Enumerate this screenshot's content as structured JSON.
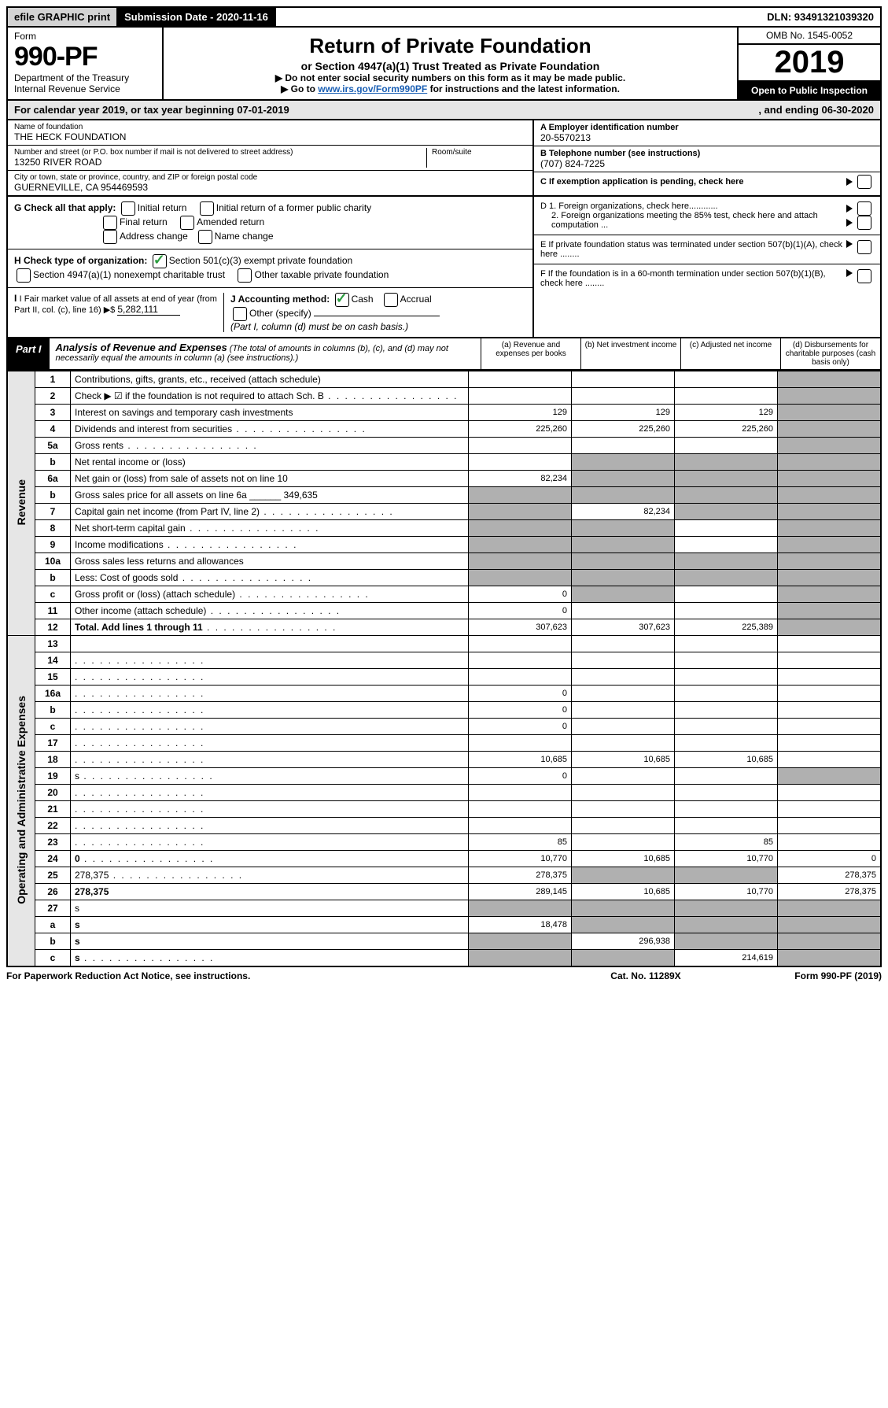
{
  "topbar": {
    "efile": "efile GRAPHIC print",
    "submission_label": "Submission Date - 2020-11-16",
    "dln": "DLN: 93491321039320"
  },
  "header": {
    "form_word": "Form",
    "form_no": "990-PF",
    "dept1": "Department of the Treasury",
    "dept2": "Internal Revenue Service",
    "title": "Return of Private Foundation",
    "subtitle": "or Section 4947(a)(1) Trust Treated as Private Foundation",
    "note1": "▶ Do not enter social security numbers on this form as it may be made public.",
    "note2_pre": "▶ Go to ",
    "note2_link": "www.irs.gov/Form990PF",
    "note2_post": " for instructions and the latest information.",
    "omb": "OMB No. 1545-0052",
    "year": "2019",
    "open": "Open to Public Inspection"
  },
  "calendar": {
    "text": "For calendar year 2019, or tax year beginning 07-01-2019",
    "ending": ", and ending 06-30-2020"
  },
  "id": {
    "name_lbl": "Name of foundation",
    "name": "THE HECK FOUNDATION",
    "addr_lbl": "Number and street (or P.O. box number if mail is not delivered to street address)",
    "room_lbl": "Room/suite",
    "addr": "13250 RIVER ROAD",
    "city_lbl": "City or town, state or province, country, and ZIP or foreign postal code",
    "city": "GUERNEVILLE, CA  954469593",
    "a_lbl": "A Employer identification number",
    "a_val": "20-5570213",
    "b_lbl": "B Telephone number (see instructions)",
    "b_val": "(707) 824-7225",
    "c_lbl": "C If exemption application is pending, check here"
  },
  "checks": {
    "g_lbl": "G Check all that apply:",
    "g1": "Initial return",
    "g2": "Initial return of a former public charity",
    "g3": "Final return",
    "g4": "Amended return",
    "g5": "Address change",
    "g6": "Name change",
    "h_lbl": "H Check type of organization:",
    "h1": "Section 501(c)(3) exempt private foundation",
    "h2": "Section 4947(a)(1) nonexempt charitable trust",
    "h3": "Other taxable private foundation",
    "i_lbl": "I Fair market value of all assets at end of year (from Part II, col. (c), line 16) ▶$ ",
    "i_val": "5,282,111",
    "j_lbl": "J Accounting method:",
    "j1": "Cash",
    "j2": "Accrual",
    "j3": "Other (specify)",
    "j_note": "(Part I, column (d) must be on cash basis.)",
    "d1": "D 1. Foreign organizations, check here............",
    "d2": "2. Foreign organizations meeting the 85% test, check here and attach computation ...",
    "e": "E  If private foundation status was terminated under section 507(b)(1)(A), check here ........",
    "f": "F  If the foundation is in a 60-month termination under section 507(b)(1)(B), check here ........"
  },
  "part1": {
    "label": "Part I",
    "title": "Analysis of Revenue and Expenses",
    "note": "(The total of amounts in columns (b), (c), and (d) may not necessarily equal the amounts in column (a) (see instructions).)",
    "col_a": "(a)  Revenue and expenses per books",
    "col_b": "(b)  Net investment income",
    "col_c": "(c)  Adjusted net income",
    "col_d": "(d)  Disbursements for charitable purposes (cash basis only)"
  },
  "cat_revenue": "Revenue",
  "cat_expenses": "Operating and Administrative Expenses",
  "rows": [
    {
      "n": "1",
      "d": "Contributions, gifts, grants, etc., received (attach schedule)",
      "a": "",
      "b": "",
      "c": "",
      "sd": "d"
    },
    {
      "n": "2",
      "d": "Check ▶ ☑ if the foundation is not required to attach Sch. B",
      "a": "",
      "b": "",
      "c": "",
      "sd": "d",
      "nb": true,
      "cls": "dotted"
    },
    {
      "n": "3",
      "d": "Interest on savings and temporary cash investments",
      "a": "129",
      "b": "129",
      "c": "129",
      "sd": "d"
    },
    {
      "n": "4",
      "d": "Dividends and interest from securities",
      "a": "225,260",
      "b": "225,260",
      "c": "225,260",
      "sd": "d",
      "cls": "dotted"
    },
    {
      "n": "5a",
      "d": "Gross rents",
      "a": "",
      "b": "",
      "c": "",
      "sd": "d",
      "cls": "dotted"
    },
    {
      "n": "b",
      "d": "Net rental income or (loss)",
      "a": "",
      "b": "s",
      "c": "s",
      "sd": "d"
    },
    {
      "n": "6a",
      "d": "Net gain or (loss) from sale of assets not on line 10",
      "a": "82,234",
      "b": "s",
      "c": "s",
      "sd": "d"
    },
    {
      "n": "b",
      "d": "Gross sales price for all assets on line 6a ______ 349,635",
      "a": "s",
      "b": "s",
      "c": "s",
      "sd": "d"
    },
    {
      "n": "7",
      "d": "Capital gain net income (from Part IV, line 2)",
      "a": "s",
      "b": "82,234",
      "c": "s",
      "sd": "d",
      "cls": "dotted"
    },
    {
      "n": "8",
      "d": "Net short-term capital gain",
      "a": "s",
      "b": "s",
      "c": "",
      "sd": "d",
      "cls": "dotted"
    },
    {
      "n": "9",
      "d": "Income modifications",
      "a": "s",
      "b": "s",
      "c": "",
      "sd": "d",
      "cls": "dotted"
    },
    {
      "n": "10a",
      "d": "Gross sales less returns and allowances",
      "a": "s",
      "b": "s",
      "c": "s",
      "sd": "d"
    },
    {
      "n": "b",
      "d": "Less: Cost of goods sold",
      "a": "s",
      "b": "s",
      "c": "s",
      "sd": "d",
      "cls": "dotted"
    },
    {
      "n": "c",
      "d": "Gross profit or (loss) (attach schedule)",
      "a": "0",
      "b": "s",
      "c": "",
      "sd": "d",
      "cls": "dotted"
    },
    {
      "n": "11",
      "d": "Other income (attach schedule)",
      "a": "0",
      "b": "",
      "c": "",
      "sd": "d",
      "cls": "dotted"
    },
    {
      "n": "12",
      "d": "Total. Add lines 1 through 11",
      "a": "307,623",
      "b": "307,623",
      "c": "225,389",
      "sd": "d",
      "bold": true,
      "cls": "dotted"
    },
    {
      "n": "13",
      "d": "",
      "a": "",
      "b": "",
      "c": ""
    },
    {
      "n": "14",
      "d": "",
      "a": "",
      "b": "",
      "c": "",
      "cls": "dotted"
    },
    {
      "n": "15",
      "d": "",
      "a": "",
      "b": "",
      "c": "",
      "cls": "dotted"
    },
    {
      "n": "16a",
      "d": "",
      "a": "0",
      "b": "",
      "c": "",
      "cls": "dotted"
    },
    {
      "n": "b",
      "d": "",
      "a": "0",
      "b": "",
      "c": "",
      "cls": "dotted"
    },
    {
      "n": "c",
      "d": "",
      "a": "0",
      "b": "",
      "c": "",
      "cls": "dotted"
    },
    {
      "n": "17",
      "d": "",
      "a": "",
      "b": "",
      "c": "",
      "cls": "dotted"
    },
    {
      "n": "18",
      "d": "",
      "a": "10,685",
      "b": "10,685",
      "c": "10,685",
      "cls": "dotted"
    },
    {
      "n": "19",
      "d": "s",
      "a": "0",
      "b": "",
      "c": "",
      "cls": "dotted"
    },
    {
      "n": "20",
      "d": "",
      "a": "",
      "b": "",
      "c": "",
      "cls": "dotted"
    },
    {
      "n": "21",
      "d": "",
      "a": "",
      "b": "",
      "c": "",
      "cls": "dotted"
    },
    {
      "n": "22",
      "d": "",
      "a": "",
      "b": "",
      "c": "",
      "cls": "dotted"
    },
    {
      "n": "23",
      "d": "",
      "a": "85",
      "b": "",
      "c": "85",
      "cls": "dotted"
    },
    {
      "n": "24",
      "d": "0",
      "a": "10,770",
      "b": "10,685",
      "c": "10,770",
      "bold": true,
      "cls": "dotted"
    },
    {
      "n": "25",
      "d": "278,375",
      "a": "278,375",
      "b": "s",
      "c": "s",
      "cls": "dotted"
    },
    {
      "n": "26",
      "d": "278,375",
      "a": "289,145",
      "b": "10,685",
      "c": "10,770",
      "bold": true
    },
    {
      "n": "27",
      "d": "s",
      "a": "s",
      "b": "s",
      "c": "s"
    },
    {
      "n": "a",
      "d": "s",
      "a": "18,478",
      "b": "s",
      "c": "s",
      "bold": true
    },
    {
      "n": "b",
      "d": "s",
      "a": "s",
      "b": "296,938",
      "c": "s",
      "bold": true
    },
    {
      "n": "c",
      "d": "s",
      "a": "s",
      "b": "s",
      "c": "214,619",
      "bold": true,
      "cls": "dotted"
    }
  ],
  "footer": {
    "l": "For Paperwork Reduction Act Notice, see instructions.",
    "m": "Cat. No. 11289X",
    "r": "Form 990-PF (2019)"
  }
}
